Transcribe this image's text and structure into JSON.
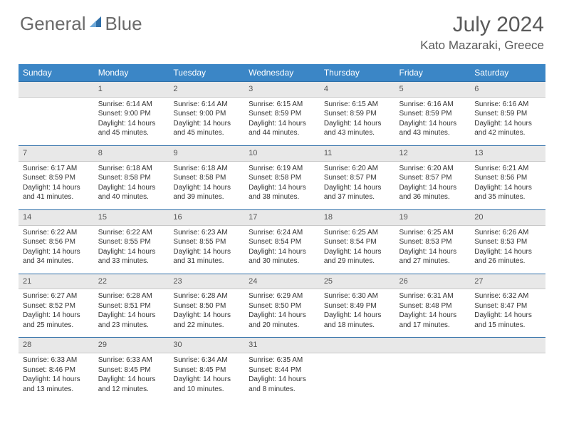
{
  "brand": {
    "part1": "General",
    "part2": "Blue",
    "logo_color": "#2f6fa8"
  },
  "title": "July 2024",
  "location": "Kato Mazaraki, Greece",
  "colors": {
    "header_bg": "#3b86c6",
    "header_text": "#ffffff",
    "daynum_bg": "#e8e8e8",
    "daynum_border_top": "#2f6fa8",
    "text": "#333333",
    "title_text": "#5a5a5a"
  },
  "weekdays": [
    "Sunday",
    "Monday",
    "Tuesday",
    "Wednesday",
    "Thursday",
    "Friday",
    "Saturday"
  ],
  "weeks": [
    {
      "nums": [
        "",
        "1",
        "2",
        "3",
        "4",
        "5",
        "6"
      ],
      "cells": [
        [],
        [
          "Sunrise: 6:14 AM",
          "Sunset: 9:00 PM",
          "Daylight: 14 hours",
          "and 45 minutes."
        ],
        [
          "Sunrise: 6:14 AM",
          "Sunset: 9:00 PM",
          "Daylight: 14 hours",
          "and 45 minutes."
        ],
        [
          "Sunrise: 6:15 AM",
          "Sunset: 8:59 PM",
          "Daylight: 14 hours",
          "and 44 minutes."
        ],
        [
          "Sunrise: 6:15 AM",
          "Sunset: 8:59 PM",
          "Daylight: 14 hours",
          "and 43 minutes."
        ],
        [
          "Sunrise: 6:16 AM",
          "Sunset: 8:59 PM",
          "Daylight: 14 hours",
          "and 43 minutes."
        ],
        [
          "Sunrise: 6:16 AM",
          "Sunset: 8:59 PM",
          "Daylight: 14 hours",
          "and 42 minutes."
        ]
      ]
    },
    {
      "nums": [
        "7",
        "8",
        "9",
        "10",
        "11",
        "12",
        "13"
      ],
      "cells": [
        [
          "Sunrise: 6:17 AM",
          "Sunset: 8:59 PM",
          "Daylight: 14 hours",
          "and 41 minutes."
        ],
        [
          "Sunrise: 6:18 AM",
          "Sunset: 8:58 PM",
          "Daylight: 14 hours",
          "and 40 minutes."
        ],
        [
          "Sunrise: 6:18 AM",
          "Sunset: 8:58 PM",
          "Daylight: 14 hours",
          "and 39 minutes."
        ],
        [
          "Sunrise: 6:19 AM",
          "Sunset: 8:58 PM",
          "Daylight: 14 hours",
          "and 38 minutes."
        ],
        [
          "Sunrise: 6:20 AM",
          "Sunset: 8:57 PM",
          "Daylight: 14 hours",
          "and 37 minutes."
        ],
        [
          "Sunrise: 6:20 AM",
          "Sunset: 8:57 PM",
          "Daylight: 14 hours",
          "and 36 minutes."
        ],
        [
          "Sunrise: 6:21 AM",
          "Sunset: 8:56 PM",
          "Daylight: 14 hours",
          "and 35 minutes."
        ]
      ]
    },
    {
      "nums": [
        "14",
        "15",
        "16",
        "17",
        "18",
        "19",
        "20"
      ],
      "cells": [
        [
          "Sunrise: 6:22 AM",
          "Sunset: 8:56 PM",
          "Daylight: 14 hours",
          "and 34 minutes."
        ],
        [
          "Sunrise: 6:22 AM",
          "Sunset: 8:55 PM",
          "Daylight: 14 hours",
          "and 33 minutes."
        ],
        [
          "Sunrise: 6:23 AM",
          "Sunset: 8:55 PM",
          "Daylight: 14 hours",
          "and 31 minutes."
        ],
        [
          "Sunrise: 6:24 AM",
          "Sunset: 8:54 PM",
          "Daylight: 14 hours",
          "and 30 minutes."
        ],
        [
          "Sunrise: 6:25 AM",
          "Sunset: 8:54 PM",
          "Daylight: 14 hours",
          "and 29 minutes."
        ],
        [
          "Sunrise: 6:25 AM",
          "Sunset: 8:53 PM",
          "Daylight: 14 hours",
          "and 27 minutes."
        ],
        [
          "Sunrise: 6:26 AM",
          "Sunset: 8:53 PM",
          "Daylight: 14 hours",
          "and 26 minutes."
        ]
      ]
    },
    {
      "nums": [
        "21",
        "22",
        "23",
        "24",
        "25",
        "26",
        "27"
      ],
      "cells": [
        [
          "Sunrise: 6:27 AM",
          "Sunset: 8:52 PM",
          "Daylight: 14 hours",
          "and 25 minutes."
        ],
        [
          "Sunrise: 6:28 AM",
          "Sunset: 8:51 PM",
          "Daylight: 14 hours",
          "and 23 minutes."
        ],
        [
          "Sunrise: 6:28 AM",
          "Sunset: 8:50 PM",
          "Daylight: 14 hours",
          "and 22 minutes."
        ],
        [
          "Sunrise: 6:29 AM",
          "Sunset: 8:50 PM",
          "Daylight: 14 hours",
          "and 20 minutes."
        ],
        [
          "Sunrise: 6:30 AM",
          "Sunset: 8:49 PM",
          "Daylight: 14 hours",
          "and 18 minutes."
        ],
        [
          "Sunrise: 6:31 AM",
          "Sunset: 8:48 PM",
          "Daylight: 14 hours",
          "and 17 minutes."
        ],
        [
          "Sunrise: 6:32 AM",
          "Sunset: 8:47 PM",
          "Daylight: 14 hours",
          "and 15 minutes."
        ]
      ]
    },
    {
      "nums": [
        "28",
        "29",
        "30",
        "31",
        "",
        "",
        ""
      ],
      "cells": [
        [
          "Sunrise: 6:33 AM",
          "Sunset: 8:46 PM",
          "Daylight: 14 hours",
          "and 13 minutes."
        ],
        [
          "Sunrise: 6:33 AM",
          "Sunset: 8:45 PM",
          "Daylight: 14 hours",
          "and 12 minutes."
        ],
        [
          "Sunrise: 6:34 AM",
          "Sunset: 8:45 PM",
          "Daylight: 14 hours",
          "and 10 minutes."
        ],
        [
          "Sunrise: 6:35 AM",
          "Sunset: 8:44 PM",
          "Daylight: 14 hours",
          "and 8 minutes."
        ],
        [],
        [],
        []
      ]
    }
  ]
}
